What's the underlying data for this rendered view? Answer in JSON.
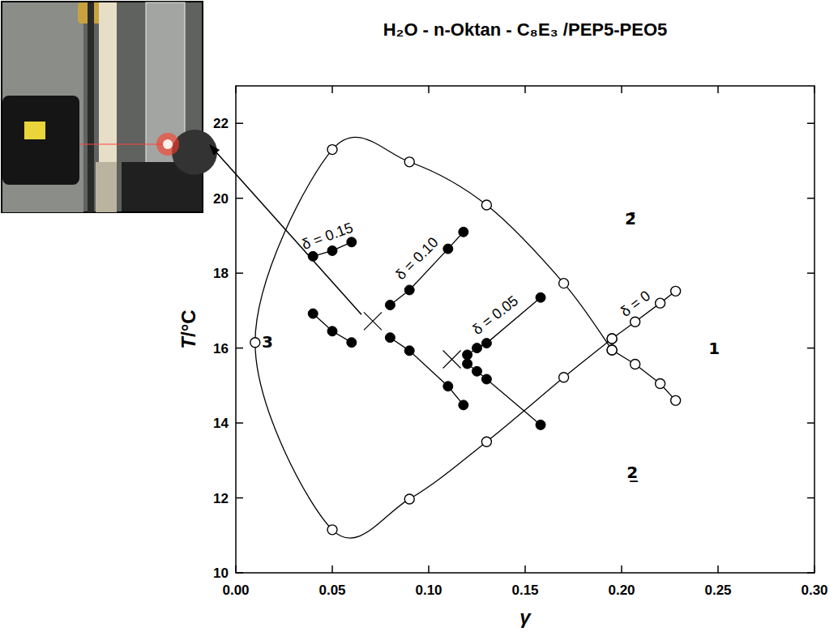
{
  "chart_data": {
    "type": "scatter",
    "title": "H₂O - n-Oktan - C₈E₃ /PEP5-PEO5",
    "x_label": "γ",
    "y_label": "T/°C",
    "xlim": [
      0,
      0.3
    ],
    "ylim": [
      10,
      23
    ],
    "xticks": [
      {
        "value": 0,
        "label": "0.00"
      },
      {
        "value": 0.05,
        "label": "0.05"
      },
      {
        "value": 0.1,
        "label": "0.10"
      },
      {
        "value": 0.15,
        "label": "0.15"
      },
      {
        "value": 0.2,
        "label": "0.20"
      },
      {
        "value": 0.25,
        "label": "0.25"
      },
      {
        "value": 0.3,
        "label": "0.30"
      }
    ],
    "yticks": [
      10,
      12,
      14,
      16,
      18,
      20,
      22
    ],
    "grid": false,
    "series": [
      {
        "color": "#000000",
        "marker": "open_circle",
        "line_style": "smooth",
        "x": [
          0.195,
          0.17,
          0.13,
          0.09,
          0.05,
          0.01,
          0.05,
          0.09,
          0.13,
          0.17,
          0.195
        ],
        "values": [
          15.95,
          17.73,
          19.82,
          20.97,
          21.3,
          16.15,
          11.15,
          11.97,
          13.5,
          15.22,
          16.25
        ]
      },
      {
        "name": "δ = 0",
        "color": "#000000",
        "marker": "open_circle",
        "line_style": "solid",
        "x": [
          0.195,
          0.207,
          0.22,
          0.228,
          null,
          0.195,
          0.207,
          0.22,
          0.228
        ],
        "values": [
          16.25,
          16.7,
          17.2,
          17.52,
          null,
          15.95,
          15.57,
          15.05,
          14.6
        ]
      },
      {
        "name": "δ = 0.05",
        "color": "#000000",
        "marker": "filled_circle",
        "line_style": "solid",
        "x": [
          0.12,
          0.125,
          0.13,
          0.158,
          null,
          0.12,
          0.125,
          0.13,
          0.158
        ],
        "values": [
          15.82,
          16.0,
          16.13,
          17.35,
          null,
          15.58,
          15.38,
          15.17,
          13.95
        ]
      },
      {
        "name": "δ = 0.10",
        "color": "#000000",
        "marker": "filled_circle",
        "line_style": "solid",
        "x": [
          0.08,
          0.09,
          0.11,
          0.118,
          null,
          0.08,
          0.09,
          0.11,
          0.118
        ],
        "values": [
          17.15,
          17.55,
          18.65,
          19.1,
          null,
          16.28,
          15.93,
          14.98,
          14.48
        ]
      },
      {
        "name": "δ = 0.15",
        "color": "#000000",
        "marker": "filled_circle",
        "line_style": "solid",
        "x": [
          0.04,
          0.05,
          0.06,
          null,
          0.04,
          0.05,
          0.06
        ],
        "values": [
          18.45,
          18.6,
          18.83,
          null,
          16.92,
          16.45,
          16.15
        ]
      },
      {
        "color": "#000000",
        "marker": "x",
        "line_style": "none",
        "x": [
          0.071,
          0.112
        ],
        "values": [
          16.72,
          15.7
        ]
      }
    ],
    "annotations": [
      {
        "text": "2̄",
        "x": 0.2046,
        "y": 19.45
      },
      {
        "text": "3",
        "x": 0.0164,
        "y": 16.16
      },
      {
        "text": "1",
        "x": 0.248,
        "y": 15.99
      },
      {
        "text": "2̲",
        "x": 0.2055,
        "y": 12.68
      }
    ]
  }
}
